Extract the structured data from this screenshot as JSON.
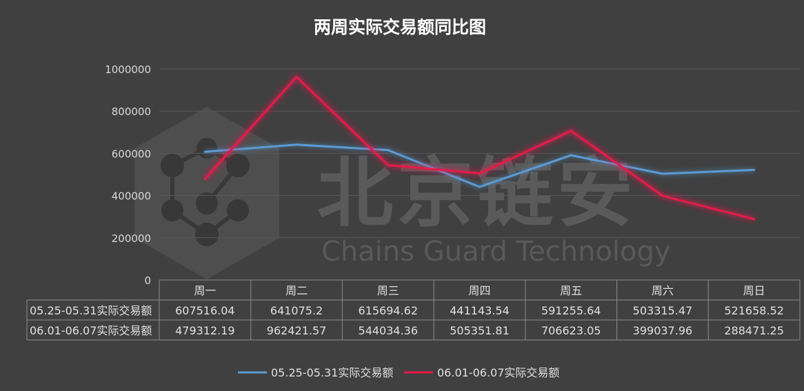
{
  "watermark": {
    "name_cn": "北京链安",
    "name_en": "Chains Guard Technology"
  },
  "chart_data": {
    "type": "line",
    "title": "两周实际交易额同比图",
    "categories": [
      "周一",
      "周二",
      "周三",
      "周四",
      "周五",
      "周六",
      "周日"
    ],
    "yticks": [
      "0",
      "200000",
      "400000",
      "600000",
      "800000",
      "1000000"
    ],
    "ylim": [
      0,
      1000000
    ],
    "grid": true,
    "legend_position": "bottom",
    "data_table": true,
    "series": [
      {
        "name": "05.25-05.31实际交易额",
        "color": "#5b9bd5",
        "values": [
          607516.04,
          641075.2,
          615694.62,
          441143.54,
          591255.64,
          503315.47,
          521658.52
        ],
        "labels": [
          "607516.04",
          "641075.2",
          "615694.62",
          "441143.54",
          "591255.64",
          "503315.47",
          "521658.52"
        ]
      },
      {
        "name": "06.01-06.07实际交易额",
        "color": "#e8194a",
        "values": [
          479312.19,
          962421.57,
          544034.36,
          505351.81,
          706623.05,
          399037.96,
          288471.25
        ],
        "labels": [
          "479312.19",
          "962421.57",
          "544034.36",
          "505351.81",
          "706623.05",
          "399037.96",
          "288471.25"
        ]
      }
    ]
  }
}
